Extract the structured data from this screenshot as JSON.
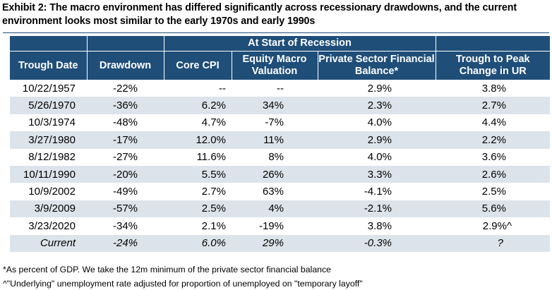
{
  "title": "Exhibit 2: The macro environment has differed significantly across recessionary drawdowns, and the current environment looks most similar to the early 1970s and early 1990s",
  "group_header": "At Start of Recession",
  "columns": {
    "trough_date": "Trough Date",
    "drawdown": "Drawdown",
    "core_cpi": "Core CPI",
    "equity_macro_valuation": "Equity Macro Valuation",
    "private_sector_financial_balance": "Private Sector Financial Balance*",
    "trough_to_peak_change_in_ur": "Trough to Peak Change in UR"
  },
  "rows": [
    {
      "trough_date": "10/22/1957",
      "drawdown": "-22%",
      "core_cpi": "--",
      "equity": "--",
      "fin_balance": "2.9%",
      "ur_change": "3.8%"
    },
    {
      "trough_date": "5/26/1970",
      "drawdown": "-36%",
      "core_cpi": "6.2%",
      "equity": "34%",
      "fin_balance": "2.3%",
      "ur_change": "2.7%"
    },
    {
      "trough_date": "10/3/1974",
      "drawdown": "-48%",
      "core_cpi": "4.7%",
      "equity": "-7%",
      "fin_balance": "4.0%",
      "ur_change": "4.4%"
    },
    {
      "trough_date": "3/27/1980",
      "drawdown": "-17%",
      "core_cpi": "12.0%",
      "equity": "11%",
      "fin_balance": "2.9%",
      "ur_change": "2.2%"
    },
    {
      "trough_date": "8/12/1982",
      "drawdown": "-27%",
      "core_cpi": "11.6%",
      "equity": "8%",
      "fin_balance": "4.0%",
      "ur_change": "3.6%"
    },
    {
      "trough_date": "10/11/1990",
      "drawdown": "-20%",
      "core_cpi": "5.5%",
      "equity": "26%",
      "fin_balance": "3.3%",
      "ur_change": "2.6%"
    },
    {
      "trough_date": "10/9/2002",
      "drawdown": "-49%",
      "core_cpi": "2.7%",
      "equity": "63%",
      "fin_balance": "-4.1%",
      "ur_change": "2.5%"
    },
    {
      "trough_date": "3/9/2009",
      "drawdown": "-57%",
      "core_cpi": "2.5%",
      "equity": "4%",
      "fin_balance": "-2.1%",
      "ur_change": "5.6%"
    },
    {
      "trough_date": "3/23/2020",
      "drawdown": "-34%",
      "core_cpi": "2.1%",
      "equity": "-19%",
      "fin_balance": "3.8%",
      "ur_change": "2.9%^"
    }
  ],
  "current_row": {
    "trough_date": "Current",
    "drawdown": "-24%",
    "core_cpi": "6.0%",
    "equity": "29%",
    "fin_balance": "-0.3%",
    "ur_change": "?"
  },
  "footnotes": [
    "*As percent of GDP. We take the 12m minimum of the private sector financial balance",
    "^\"Underlying\" unemployment rate adjusted for proportion of unemployed on \"temporary layoff\""
  ],
  "colors": {
    "header_bg": "#1f4e79",
    "shade_row": "#dde3ea"
  }
}
